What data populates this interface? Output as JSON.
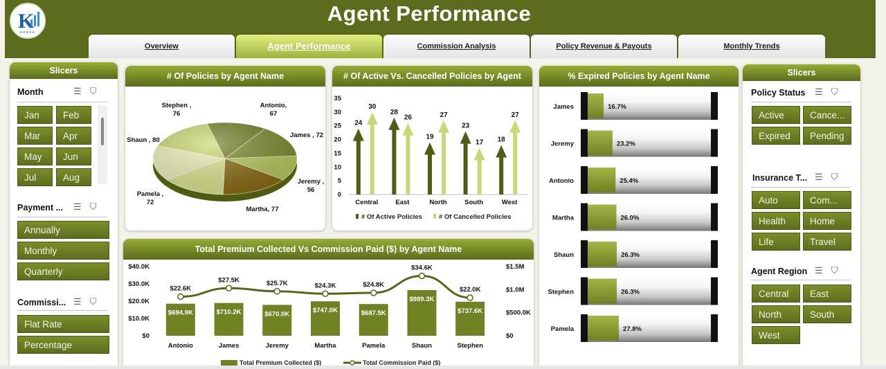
{
  "header": {
    "title": "Agent Performance",
    "logo_text": "K"
  },
  "tabs": [
    {
      "label": "Overview",
      "active": false
    },
    {
      "label": "Agent Performance",
      "active": true
    },
    {
      "label": "Commission Analysis",
      "active": false
    },
    {
      "label": "Policy Revenue & Payouts",
      "active": false
    },
    {
      "label": "Monthly Trends",
      "active": false
    }
  ],
  "left_slicers": {
    "title": "Slicers",
    "month": {
      "label": "Month",
      "items": [
        "Jan",
        "Feb",
        "Mar",
        "Apr",
        "May",
        "Jun",
        "Jul",
        "Aug"
      ]
    },
    "payment": {
      "label": "Payment ...",
      "items": [
        "Annually",
        "Monthly",
        "Quarterly"
      ]
    },
    "commission": {
      "label": "Commissi...",
      "items": [
        "Flat Rate",
        "Percentage"
      ]
    }
  },
  "right_slicers": {
    "title": "Slicers",
    "policy_status": {
      "label": "Policy Status",
      "items": [
        "Active",
        "Cance...",
        "Expired",
        "Pending"
      ]
    },
    "insurance_type": {
      "label": "Insurance T...",
      "items": [
        "Auto",
        "Com...",
        "Health",
        "Home",
        "Life",
        "Travel"
      ]
    },
    "agent_region": {
      "label": "Agent Region",
      "items": [
        "Central",
        "East",
        "North",
        "South",
        "West"
      ]
    }
  },
  "colors": {
    "dark_olive": "#5c6c1e",
    "olive": "#7a8e2a",
    "light_olive": "#c8d86a",
    "pale": "#e6eea6"
  },
  "chart_data": [
    {
      "id": "policies_by_agent",
      "type": "pie",
      "title": "# Of Policies by Agent Name",
      "labels": [
        "Antonio",
        "James",
        "Jeremy",
        "Martha",
        "Pamela",
        "Shaun",
        "Stephen"
      ],
      "values": [
        67,
        72,
        56,
        77,
        72,
        80,
        76
      ],
      "data_labels": [
        "Antonio,\n67",
        "James , 72",
        "Jeremy ,\n56",
        "Martha, 77",
        "Pamela ,\n72",
        "Shaun , 80",
        "Stephen ,\n76"
      ]
    },
    {
      "id": "active_vs_cancelled",
      "type": "bar",
      "title": "# Of Active Vs. Cancelled Policies by Agent",
      "categories": [
        "Central",
        "East",
        "North",
        "South",
        "West"
      ],
      "series": [
        {
          "name": "# Of Active Policies",
          "values": [
            24,
            28,
            19,
            23,
            18
          ]
        },
        {
          "name": "# Of Cancelled Policies",
          "values": [
            30,
            26,
            27,
            17,
            27
          ]
        }
      ],
      "ylim": [
        0,
        35
      ],
      "yticks": [
        0,
        5,
        10,
        15,
        20,
        25,
        30,
        35
      ]
    },
    {
      "id": "expired_pct",
      "type": "bar",
      "title": "%  Expired Policies by Agent Name",
      "categories": [
        "James",
        "Jeremy",
        "Antonio",
        "Martha",
        "Shaun",
        "Stephen",
        "Pamela"
      ],
      "values": [
        16.7,
        23.2,
        25.4,
        26.0,
        26.3,
        26.3,
        27.8
      ],
      "value_labels": [
        "16.7%",
        "23.2%",
        "25.4%",
        "26.0%",
        "26.3%",
        "26.3%",
        "27.8%"
      ],
      "xlim": [
        0,
        100
      ]
    },
    {
      "id": "premium_vs_commission",
      "type": "bar",
      "title": "Total Premium Collected Vs Commission Paid ($) by Agent Name",
      "categories": [
        "Antonio",
        "James",
        "Jeremy",
        "Martha",
        "Pamela",
        "Shaun",
        "Stephen"
      ],
      "series": [
        {
          "name": "Total Premium Collected ($)",
          "axis": "right",
          "values": [
            694.9,
            710.2,
            670.0,
            747.0,
            687.5,
            989.3,
            737.6
          ],
          "value_labels": [
            "$694.9K",
            "$710.2K",
            "$670.0K",
            "$747.0K",
            "$687.5K",
            "$989.3K",
            "$737.6K"
          ]
        },
        {
          "name": "Total Commission Paid ($)",
          "axis": "left",
          "type": "line",
          "values": [
            22.6,
            27.5,
            25.7,
            24.3,
            24.8,
            34.6,
            22.0
          ],
          "value_labels": [
            "$22.6K",
            "$27.5K",
            "$25.7K",
            "$24.3K",
            "$24.8K",
            "$34.6K",
            "$22.0K"
          ]
        }
      ],
      "left_ylim": [
        0,
        40
      ],
      "left_ticks": [
        "$0",
        "$10.0K",
        "$20.0K",
        "$30.0K",
        "$40.0K"
      ],
      "right_ylim": [
        0,
        1500
      ],
      "right_ticks": [
        "$0",
        "$500.0K",
        "$1.0M",
        "$1.5M"
      ]
    }
  ]
}
